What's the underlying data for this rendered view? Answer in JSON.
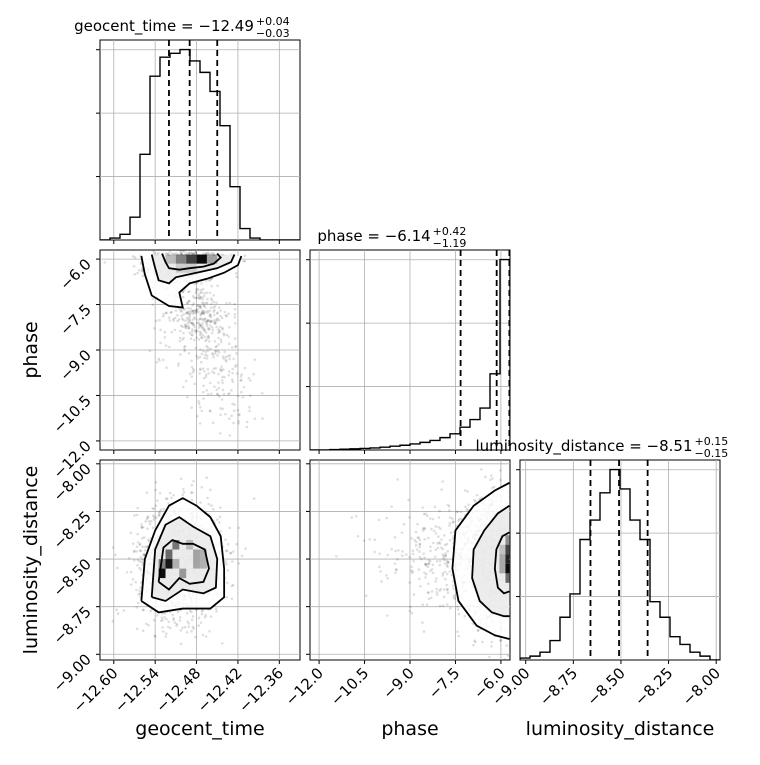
{
  "chart_data": {
    "type": "corner",
    "parameters": [
      {
        "name": "geocent_time",
        "xlabel": "geocent_time",
        "title_base": "geocent_time = −12.49",
        "title_sup": "+0.04",
        "title_sub": "−0.03",
        "range": [
          -12.62,
          -12.33
        ],
        "ticks": [
          -12.6,
          -12.54,
          -12.48,
          -12.42,
          -12.36
        ],
        "tick_labels": [
          "−12.60",
          "−12.54",
          "−12.48",
          "−12.42",
          "−12.36"
        ],
        "quantiles": [
          -12.52,
          -12.49,
          -12.45
        ],
        "hist_edges": [
          -12.62,
          -12.6055,
          -12.591,
          -12.5765,
          -12.562,
          -12.5475,
          -12.533,
          -12.5185,
          -12.504,
          -12.4895,
          -12.475,
          -12.4605,
          -12.446,
          -12.4315,
          -12.417,
          -12.4025,
          -12.388,
          -12.3735,
          -12.359,
          -12.3445,
          -12.33
        ],
        "hist_counts": [
          0.0,
          0.01,
          0.03,
          0.12,
          0.45,
          0.86,
          0.96,
          0.98,
          1.0,
          0.94,
          0.88,
          0.78,
          0.6,
          0.28,
          0.06,
          0.01,
          0.0,
          0.0,
          0.0,
          0.0
        ]
      },
      {
        "name": "phase",
        "xlabel": "phase",
        "ylabel": "phase",
        "title_base": "phase = −6.14",
        "title_sup": "+0.42",
        "title_sub": "−1.19",
        "range": [
          -12.3,
          -5.7
        ],
        "ticks": [
          -12.0,
          -10.5,
          -9.0,
          -7.5,
          -6.0
        ],
        "tick_labels": [
          "−12.0",
          "−10.5",
          "−9.0",
          "−7.5",
          "−6.0"
        ],
        "quantiles": [
          -7.33,
          -6.14,
          -5.72
        ],
        "hist_edges": [
          -12.3,
          -11.97,
          -11.64,
          -11.31,
          -10.98,
          -10.65,
          -10.32,
          -9.99,
          -9.66,
          -9.33,
          -9.0,
          -8.67,
          -8.34,
          -8.01,
          -7.68,
          -7.35,
          -7.02,
          -6.69,
          -6.36,
          -6.03,
          -5.7
        ],
        "hist_counts": [
          0.0,
          0.0,
          0.002,
          0.004,
          0.006,
          0.008,
          0.011,
          0.015,
          0.02,
          0.025,
          0.032,
          0.04,
          0.05,
          0.065,
          0.085,
          0.12,
          0.16,
          0.22,
          0.4,
          1.0
        ]
      },
      {
        "name": "luminosity_distance",
        "xlabel": "luminosity_distance",
        "ylabel": "luminosity_distance",
        "title_base": "luminosity_distance = −8.51",
        "title_sup": "+0.15",
        "title_sub": "−0.15",
        "range": [
          -9.03,
          -7.98
        ],
        "ticks": [
          -9.0,
          -8.75,
          -8.5,
          -8.25,
          -8.0
        ],
        "tick_labels": [
          "−9.00",
          "−8.75",
          "−8.50",
          "−8.25",
          "−8.00"
        ],
        "quantiles": [
          -8.66,
          -8.51,
          -8.36
        ],
        "hist_edges": [
          -9.03,
          -8.9775,
          -8.925,
          -8.8725,
          -8.82,
          -8.7675,
          -8.715,
          -8.6625,
          -8.61,
          -8.5575,
          -8.505,
          -8.4525,
          -8.4,
          -8.3475,
          -8.295,
          -8.2425,
          -8.19,
          -8.1375,
          -8.085,
          -8.0325,
          -7.98
        ],
        "hist_counts": [
          0.01,
          0.02,
          0.04,
          0.1,
          0.22,
          0.34,
          0.62,
          0.72,
          0.86,
          0.98,
          0.88,
          0.72,
          0.62,
          0.3,
          0.22,
          0.12,
          0.08,
          0.04,
          0.02,
          0.0
        ]
      }
    ],
    "joint": [
      {
        "x": "geocent_time",
        "y": "phase",
        "samples": {
          "clusters": [
            {
              "mx": -12.5,
              "my": -6.25,
              "sx": 0.028,
              "sy": 0.3,
              "n": 520
            },
            {
              "mx": -12.47,
              "my": -6.05,
              "sx": 0.02,
              "sy": 0.12,
              "n": 180
            },
            {
              "mx": -12.48,
              "my": -7.8,
              "sx": 0.025,
              "sy": 0.5,
              "n": 260
            },
            {
              "mx": -12.46,
              "my": -9.2,
              "sx": 0.028,
              "sy": 0.7,
              "n": 150
            },
            {
              "mx": -12.43,
              "my": -10.6,
              "sx": 0.028,
              "sy": 0.6,
              "n": 60
            }
          ],
          "clip_y_max": -5.72
        },
        "density_cells": [
          {
            "x0": -12.51,
            "x1": -12.495,
            "y0": -6.15,
            "y1": -5.85,
            "shade": 0.45
          },
          {
            "x0": -12.495,
            "x1": -12.48,
            "y0": -6.15,
            "y1": -5.85,
            "shade": 0.72
          },
          {
            "x0": -12.48,
            "x1": -12.465,
            "y0": -6.15,
            "y1": -5.85,
            "shade": 0.95
          },
          {
            "x0": -12.465,
            "x1": -12.45,
            "y0": -6.15,
            "y1": -5.85,
            "shade": 0.3
          },
          {
            "x0": -12.525,
            "x1": -12.51,
            "y0": -6.15,
            "y1": -5.85,
            "shade": 0.2
          },
          {
            "x0": -12.51,
            "x1": -12.48,
            "y0": -6.45,
            "y1": -6.15,
            "shade": 0.12
          }
        ],
        "contours": [
          [
            [
              -12.53,
              -5.82
            ],
            [
              -12.525,
              -6.1
            ],
            [
              -12.52,
              -6.3
            ],
            [
              -12.505,
              -6.35
            ],
            [
              -12.49,
              -6.3
            ],
            [
              -12.47,
              -6.25
            ],
            [
              -12.455,
              -6.15
            ],
            [
              -12.445,
              -5.95
            ],
            [
              -12.45,
              -5.82
            ]
          ],
          [
            [
              -12.545,
              -5.85
            ],
            [
              -12.54,
              -6.3
            ],
            [
              -12.535,
              -6.7
            ],
            [
              -12.52,
              -6.8
            ],
            [
              -12.51,
              -6.6
            ],
            [
              -12.49,
              -6.5
            ],
            [
              -12.47,
              -6.4
            ],
            [
              -12.45,
              -6.3
            ],
            [
              -12.43,
              -6.1
            ],
            [
              -12.425,
              -5.85
            ]
          ],
          [
            [
              -12.56,
              -5.9
            ],
            [
              -12.555,
              -6.5
            ],
            [
              -12.545,
              -7.2
            ],
            [
              -12.52,
              -7.55
            ],
            [
              -12.5,
              -7.6
            ],
            [
              -12.505,
              -7.1
            ],
            [
              -12.49,
              -6.8
            ],
            [
              -12.465,
              -6.65
            ],
            [
              -12.44,
              -6.45
            ],
            [
              -12.42,
              -6.2
            ],
            [
              -12.415,
              -5.9
            ]
          ]
        ]
      },
      {
        "x": "geocent_time",
        "y": "luminosity_distance",
        "samples": {
          "clusters": [
            {
              "mx": -12.505,
              "my": -8.51,
              "sx": 0.03,
              "sy": 0.15,
              "n": 1400
            },
            {
              "mx": -12.525,
              "my": -8.55,
              "sx": 0.012,
              "sy": 0.06,
              "n": 220
            }
          ]
        },
        "density_cells": [
          {
            "x0": -12.535,
            "x1": -12.525,
            "y0": -8.6,
            "y1": -8.55,
            "shade": 0.95
          },
          {
            "x0": -12.525,
            "x1": -12.515,
            "y0": -8.55,
            "y1": -8.5,
            "shade": 0.9
          },
          {
            "x0": -12.525,
            "x1": -12.515,
            "y0": -8.5,
            "y1": -8.45,
            "shade": 0.55
          },
          {
            "x0": -12.535,
            "x1": -12.525,
            "y0": -8.55,
            "y1": -8.5,
            "shade": 0.45
          },
          {
            "x0": -12.515,
            "x1": -12.505,
            "y0": -8.45,
            "y1": -8.4,
            "shade": 0.5
          },
          {
            "x0": -12.505,
            "x1": -12.495,
            "y0": -8.6,
            "y1": -8.55,
            "shade": 0.35
          },
          {
            "x0": -12.485,
            "x1": -12.475,
            "y0": -8.55,
            "y1": -8.45,
            "shade": 0.3
          },
          {
            "x0": -12.475,
            "x1": -12.465,
            "y0": -8.55,
            "y1": -8.45,
            "shade": 0.25
          },
          {
            "x0": -12.515,
            "x1": -12.505,
            "y0": -8.55,
            "y1": -8.5,
            "shade": 0.25
          },
          {
            "x0": -12.495,
            "x1": -12.485,
            "y0": -8.45,
            "y1": -8.4,
            "shade": 0.2
          }
        ],
        "contours": [
          [
            [
              -12.535,
              -8.62
            ],
            [
              -12.528,
              -8.44
            ],
            [
              -12.515,
              -8.4
            ],
            [
              -12.5,
              -8.42
            ],
            [
              -12.485,
              -8.42
            ],
            [
              -12.468,
              -8.45
            ],
            [
              -12.462,
              -8.55
            ],
            [
              -12.47,
              -8.62
            ],
            [
              -12.49,
              -8.63
            ],
            [
              -12.505,
              -8.6
            ],
            [
              -12.52,
              -8.66
            ],
            [
              -12.535,
              -8.62
            ]
          ],
          [
            [
              -12.545,
              -8.7
            ],
            [
              -12.54,
              -8.45
            ],
            [
              -12.525,
              -8.32
            ],
            [
              -12.505,
              -8.28
            ],
            [
              -12.485,
              -8.33
            ],
            [
              -12.46,
              -8.38
            ],
            [
              -12.45,
              -8.5
            ],
            [
              -12.452,
              -8.65
            ],
            [
              -12.47,
              -8.68
            ],
            [
              -12.5,
              -8.66
            ],
            [
              -12.525,
              -8.72
            ],
            [
              -12.545,
              -8.7
            ]
          ],
          [
            [
              -12.56,
              -8.72
            ],
            [
              -12.555,
              -8.5
            ],
            [
              -12.54,
              -8.35
            ],
            [
              -12.52,
              -8.22
            ],
            [
              -12.5,
              -8.18
            ],
            [
              -12.48,
              -8.22
            ],
            [
              -12.46,
              -8.28
            ],
            [
              -12.445,
              -8.38
            ],
            [
              -12.44,
              -8.55
            ],
            [
              -12.44,
              -8.7
            ],
            [
              -12.46,
              -8.76
            ],
            [
              -12.5,
              -8.76
            ],
            [
              -12.535,
              -8.78
            ],
            [
              -12.56,
              -8.72
            ]
          ]
        ]
      },
      {
        "x": "phase",
        "y": "luminosity_distance",
        "samples": {
          "clusters": [
            {
              "mx": -6.2,
              "my": -8.51,
              "sx": 0.5,
              "sy": 0.16,
              "n": 1100
            },
            {
              "mx": -7.4,
              "my": -8.5,
              "sx": 0.9,
              "sy": 0.15,
              "n": 300
            },
            {
              "mx": -9.3,
              "my": -8.45,
              "sx": 0.8,
              "sy": 0.12,
              "n": 60
            }
          ],
          "clip_x_max": -5.72
        },
        "density_cells": [
          {
            "x0": -5.85,
            "x1": -5.72,
            "y0": -8.575,
            "y1": -8.525,
            "shade": 0.95
          },
          {
            "x0": -5.85,
            "x1": -5.72,
            "y0": -8.525,
            "y1": -8.475,
            "shade": 0.85
          },
          {
            "x0": -5.85,
            "x1": -5.72,
            "y0": -8.475,
            "y1": -8.425,
            "shade": 0.7
          },
          {
            "x0": -5.85,
            "x1": -5.72,
            "y0": -8.625,
            "y1": -8.575,
            "shade": 0.55
          },
          {
            "x0": -5.85,
            "x1": -5.72,
            "y0": -8.425,
            "y1": -8.375,
            "shade": 0.4
          },
          {
            "x0": -6.05,
            "x1": -5.85,
            "y0": -8.575,
            "y1": -8.475,
            "shade": 0.28
          },
          {
            "x0": -6.05,
            "x1": -5.85,
            "y0": -8.475,
            "y1": -8.425,
            "shade": 0.18
          }
        ],
        "contours": [
          [
            [
              -5.72,
              -8.36
            ],
            [
              -5.95,
              -8.38
            ],
            [
              -6.15,
              -8.45
            ],
            [
              -6.2,
              -8.55
            ],
            [
              -6.1,
              -8.65
            ],
            [
              -5.9,
              -8.68
            ],
            [
              -5.72,
              -8.67
            ]
          ],
          [
            [
              -5.72,
              -8.22
            ],
            [
              -6.1,
              -8.26
            ],
            [
              -6.55,
              -8.35
            ],
            [
              -6.9,
              -8.45
            ],
            [
              -6.95,
              -8.6
            ],
            [
              -6.7,
              -8.72
            ],
            [
              -6.3,
              -8.78
            ],
            [
              -5.9,
              -8.8
            ],
            [
              -5.72,
              -8.8
            ]
          ],
          [
            [
              -5.72,
              -8.1
            ],
            [
              -6.2,
              -8.14
            ],
            [
              -6.9,
              -8.22
            ],
            [
              -7.5,
              -8.35
            ],
            [
              -7.6,
              -8.55
            ],
            [
              -7.4,
              -8.72
            ],
            [
              -6.8,
              -8.85
            ],
            [
              -6.2,
              -8.9
            ],
            [
              -5.72,
              -8.92
            ]
          ]
        ]
      }
    ]
  }
}
